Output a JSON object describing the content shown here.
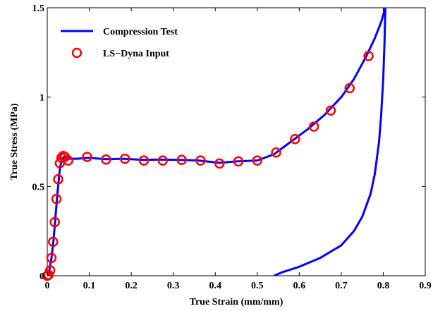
{
  "chart_data": {
    "type": "line",
    "title": "",
    "xlabel": "True Strain (mm/mm)",
    "ylabel": "True Stress  (MPa)",
    "xlim": [
      0,
      0.9
    ],
    "ylim": [
      0,
      1.5
    ],
    "xticks": [
      0,
      0.1,
      0.2,
      0.3,
      0.4,
      0.5,
      0.6,
      0.7,
      0.8,
      0.9
    ],
    "xtick_labels": [
      "0",
      "0.1",
      "0.2",
      "0.3",
      "0.4",
      "0.5",
      "0.6",
      "0.7",
      "0.8",
      "0.9"
    ],
    "yticks": [
      0,
      0.5,
      1,
      1.5
    ],
    "ytick_labels": [
      "0",
      "0.5",
      "1",
      "1.5"
    ],
    "grid": false,
    "legend_position": "top-left",
    "series": [
      {
        "name": "Compression Test",
        "style": "line",
        "color": "#0000ff",
        "segments": [
          {
            "x": [
              0.0,
              0.005,
              0.01,
              0.015,
              0.02,
              0.025,
              0.03,
              0.035,
              0.04,
              0.045,
              0.05,
              0.07,
              0.1,
              0.14,
              0.18,
              0.23,
              0.27,
              0.32,
              0.36,
              0.41,
              0.45,
              0.5,
              0.54,
              0.58,
              0.62,
              0.66,
              0.7,
              0.73,
              0.76,
              0.78,
              0.795,
              0.805
            ],
            "y": [
              0.0,
              0.03,
              0.1,
              0.2,
              0.34,
              0.48,
              0.6,
              0.655,
              0.665,
              0.66,
              0.655,
              0.655,
              0.66,
              0.652,
              0.655,
              0.648,
              0.65,
              0.648,
              0.645,
              0.632,
              0.64,
              0.645,
              0.68,
              0.75,
              0.82,
              0.9,
              1.0,
              1.1,
              1.23,
              1.33,
              1.42,
              1.5
            ]
          },
          {
            "x": [
              0.54,
              0.56,
              0.6,
              0.65,
              0.7,
              0.73,
              0.75,
              0.77,
              0.78,
              0.79,
              0.795,
              0.8,
              0.803,
              0.805
            ],
            "y": [
              0.0,
              0.02,
              0.05,
              0.1,
              0.17,
              0.25,
              0.33,
              0.46,
              0.57,
              0.75,
              0.9,
              1.1,
              1.3,
              1.5
            ]
          }
        ]
      },
      {
        "name": "LS−Dyna Input",
        "style": "markers",
        "marker": "circle-open",
        "color": "#ff0000",
        "x": [
          0.0,
          0.003,
          0.007,
          0.01,
          0.014,
          0.018,
          0.022,
          0.026,
          0.03,
          0.034,
          0.038,
          0.042,
          0.05,
          0.095,
          0.14,
          0.185,
          0.23,
          0.275,
          0.32,
          0.365,
          0.41,
          0.455,
          0.5,
          0.545,
          0.59,
          0.635,
          0.675,
          0.72,
          0.765
        ],
        "y": [
          0.0,
          0.005,
          0.03,
          0.1,
          0.19,
          0.3,
          0.43,
          0.54,
          0.63,
          0.66,
          0.67,
          0.665,
          0.645,
          0.665,
          0.65,
          0.655,
          0.645,
          0.645,
          0.648,
          0.645,
          0.628,
          0.64,
          0.645,
          0.69,
          0.765,
          0.835,
          0.925,
          1.05,
          1.23
        ]
      }
    ]
  }
}
